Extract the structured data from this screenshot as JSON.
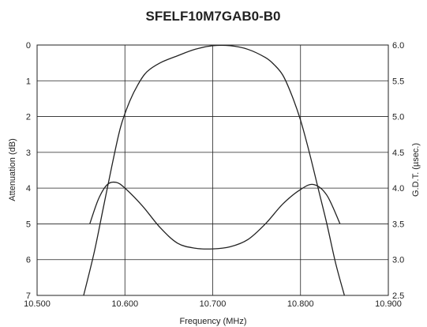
{
  "chart_data": {
    "type": "line",
    "title": "SFELF10M7GAB0-B0",
    "xlabel": "Frequency (MHz)",
    "ylabel_left": "Attenuation (dB)",
    "ylabel_right": "G.D.T. (µsec.)",
    "xlim": [
      10.5,
      10.9
    ],
    "ylim_left": [
      7,
      0
    ],
    "ylim_right": [
      2.5,
      6.0
    ],
    "x_ticks": [
      "10.500",
      "10.600",
      "10.700",
      "10.800",
      "10.900"
    ],
    "y_left_ticks": [
      "0",
      "1",
      "2",
      "3",
      "4",
      "5",
      "6",
      "7"
    ],
    "y_right_ticks": [
      "6.0",
      "5.5",
      "5.0",
      "4.5",
      "4.0",
      "3.5",
      "3.0",
      "2.5"
    ],
    "grid": true,
    "series": [
      {
        "axis": "left",
        "x": [
          10.553,
          10.565,
          10.575,
          10.585,
          10.595,
          10.605,
          10.615,
          10.625,
          10.64,
          10.66,
          10.68,
          10.7,
          10.72,
          10.74,
          10.76,
          10.77,
          10.78,
          10.79,
          10.8,
          10.81,
          10.82,
          10.83,
          10.84,
          10.85
        ],
        "values": [
          7.0,
          5.8,
          4.6,
          3.4,
          2.3,
          1.6,
          1.1,
          0.75,
          0.5,
          0.3,
          0.12,
          0.02,
          0.02,
          0.12,
          0.35,
          0.55,
          0.85,
          1.4,
          2.1,
          3.0,
          4.0,
          5.0,
          6.1,
          7.0
        ]
      },
      {
        "axis": "right",
        "x": [
          10.56,
          10.57,
          10.58,
          10.59,
          10.6,
          10.62,
          10.64,
          10.66,
          10.68,
          10.7,
          10.72,
          10.74,
          10.76,
          10.78,
          10.8,
          10.815,
          10.83,
          10.845
        ],
        "values": [
          3.5,
          3.85,
          4.05,
          4.08,
          4.0,
          3.75,
          3.45,
          3.23,
          3.16,
          3.15,
          3.18,
          3.28,
          3.5,
          3.78,
          3.98,
          4.05,
          3.9,
          3.5
        ]
      }
    ]
  }
}
